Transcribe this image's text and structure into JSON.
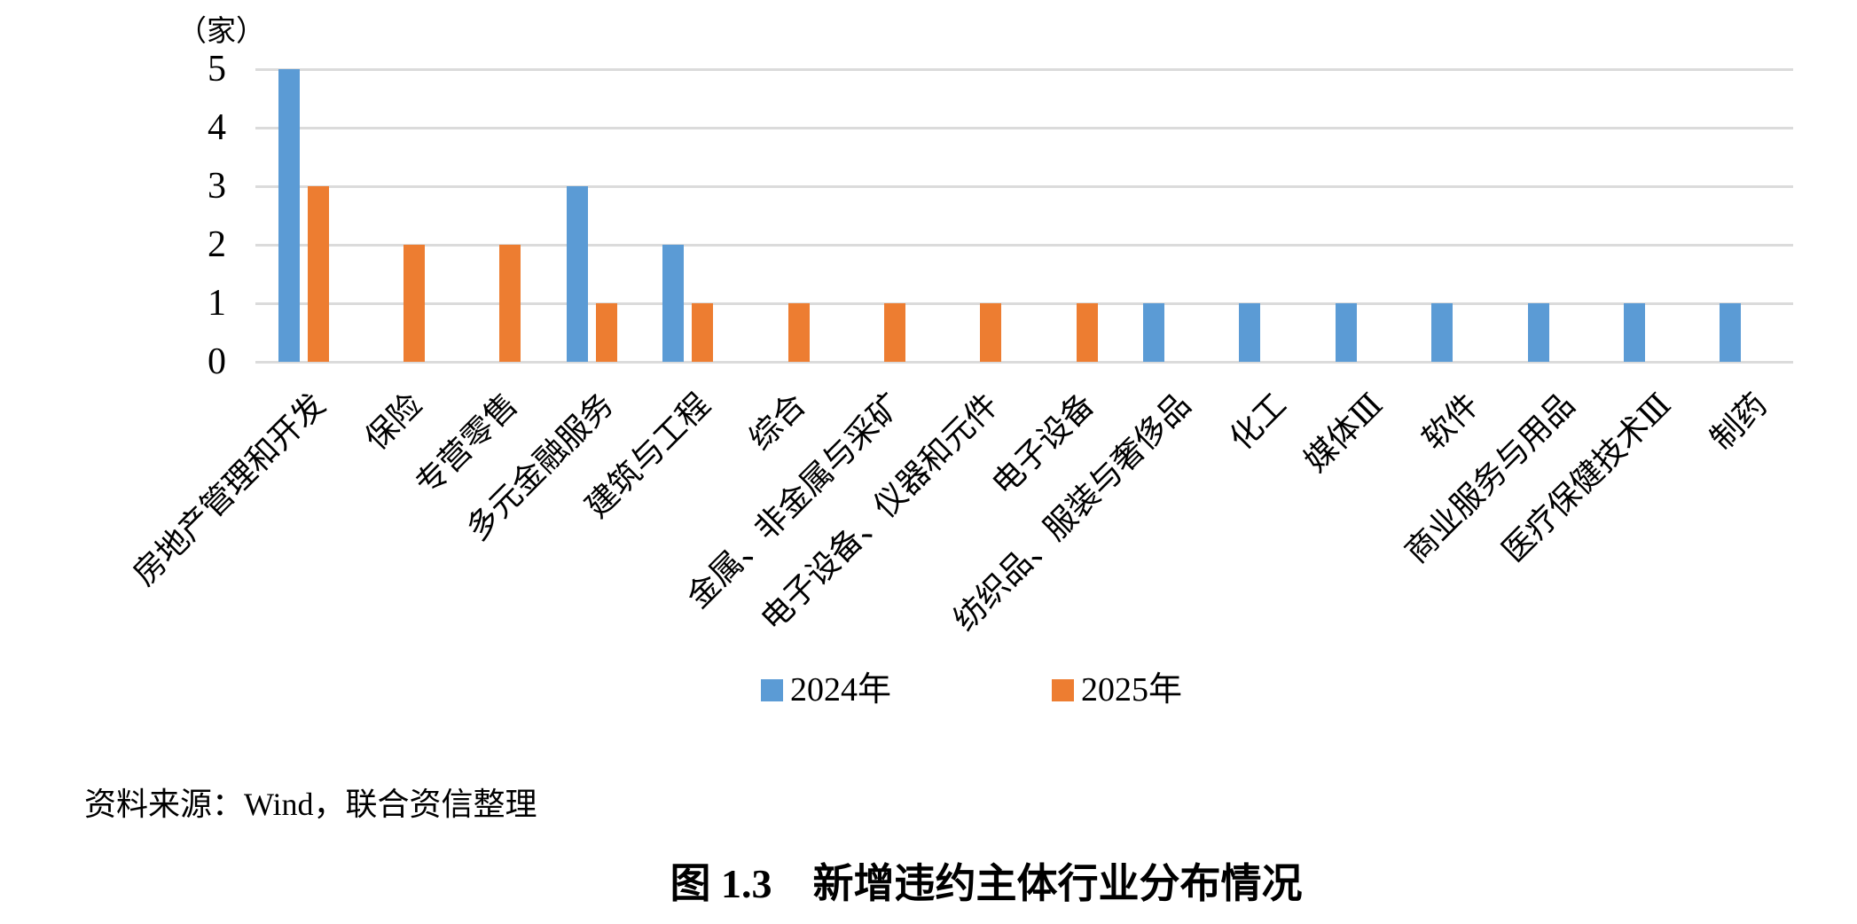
{
  "figure": {
    "unit_label": "（家）",
    "source": "资料来源：Wind，联合资信整理",
    "caption": "图 1.3　新增违约主体行业分布情况"
  },
  "chart_data": {
    "type": "bar",
    "title": "新增违约主体行业分布情况",
    "unit": "（家）",
    "categories": [
      "房地产管理和开发",
      "保险",
      "专营零售",
      "多元金融服务",
      "建筑与工程",
      "综合",
      "金属、非金属与采矿",
      "电子设备、仪器和元件",
      "电子设备",
      "纺织品、服装与奢侈品",
      "化工",
      "媒体Ⅲ",
      "软件",
      "商业服务与用品",
      "医疗保健技术Ⅲ",
      "制药"
    ],
    "series": [
      {
        "name": "2024年",
        "color": "#5B9BD5",
        "values": [
          5,
          0,
          0,
          3,
          2,
          0,
          0,
          0,
          0,
          1,
          1,
          1,
          1,
          1,
          1,
          1
        ]
      },
      {
        "name": "2025年",
        "color": "#ED7D31",
        "values": [
          3,
          2,
          2,
          1,
          1,
          1,
          1,
          1,
          1,
          0,
          0,
          0,
          0,
          0,
          0,
          0
        ]
      }
    ],
    "ylim": [
      0,
      5
    ],
    "yticks": [
      0,
      1,
      2,
      3,
      4,
      5
    ],
    "grid": true,
    "legend_position": "bottom",
    "gridline_color": "#DBDBDB"
  }
}
